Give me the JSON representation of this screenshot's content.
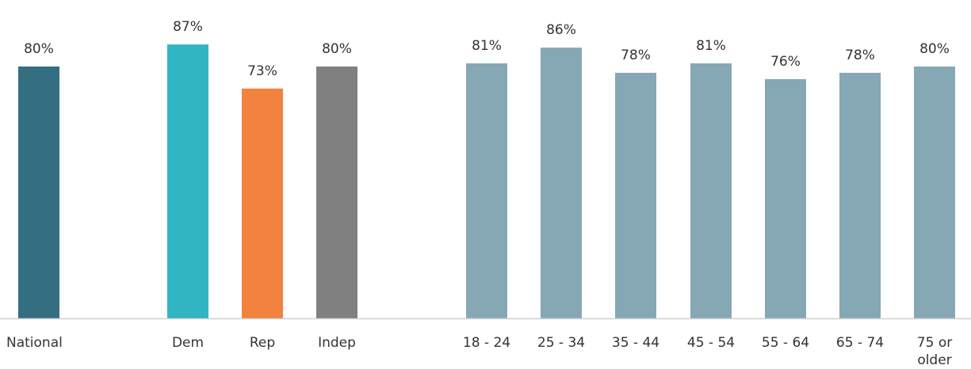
{
  "chart_data": {
    "type": "bar",
    "title": "",
    "xlabel": "",
    "ylabel": "",
    "ylim": [
      0,
      100
    ],
    "grid": false,
    "value_format": "{v}%",
    "bars": [
      {
        "category": "National",
        "value": 80,
        "color": "#336f80"
      },
      {
        "category": "Dem",
        "value": 87,
        "color": "#31b5c2"
      },
      {
        "category": "Rep",
        "value": 73,
        "color": "#f2823d"
      },
      {
        "category": "Indep",
        "value": 80,
        "color": "#808080"
      },
      {
        "category": "18 - 24",
        "value": 81,
        "color": "#85a8b4"
      },
      {
        "category": "25 - 34",
        "value": 86,
        "color": "#85a8b4"
      },
      {
        "category": "35 - 44",
        "value": 78,
        "color": "#85a8b4"
      },
      {
        "category": "45 - 54",
        "value": 81,
        "color": "#85a8b4"
      },
      {
        "category": "55 - 64",
        "value": 76,
        "color": "#85a8b4"
      },
      {
        "category": "65 - 74",
        "value": 78,
        "color": "#85a8b4"
      },
      {
        "category": "75 or older",
        "value": 80,
        "color": "#85a8b4"
      }
    ]
  }
}
